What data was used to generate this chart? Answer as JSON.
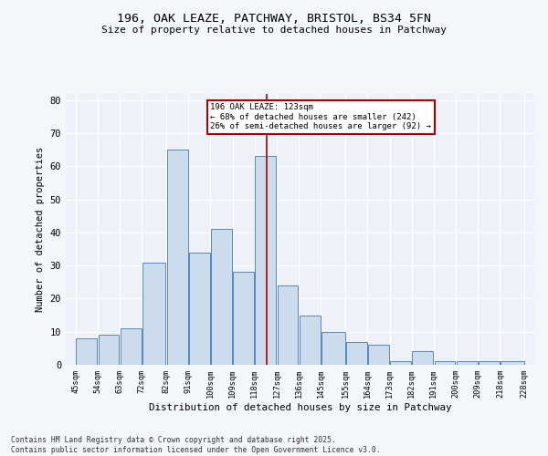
{
  "title1": "196, OAK LEAZE, PATCHWAY, BRISTOL, BS34 5FN",
  "title2": "Size of property relative to detached houses in Patchway",
  "xlabel": "Distribution of detached houses by size in Patchway",
  "ylabel": "Number of detached properties",
  "footer": "Contains HM Land Registry data © Crown copyright and database right 2025.\nContains public sector information licensed under the Open Government Licence v3.0.",
  "annotation_title": "196 OAK LEAZE: 123sqm",
  "annotation_line1": "← 68% of detached houses are smaller (242)",
  "annotation_line2": "26% of semi-detached houses are larger (92) →",
  "property_line_x": 123,
  "bar_color": "#ccdcec",
  "bar_edge_color": "#5588bb",
  "vline_color": "#aa0000",
  "annotation_box_edge_color": "#aa0000",
  "background_color": "#eef2f8",
  "grid_color": "#ffffff",
  "bins_left": [
    45,
    54,
    63,
    72,
    82,
    91,
    100,
    109,
    118,
    127,
    136,
    145,
    155,
    164,
    173,
    182,
    191,
    200,
    209,
    218
  ],
  "bins_right": [
    54,
    63,
    72,
    82,
    91,
    100,
    109,
    118,
    127,
    136,
    145,
    155,
    164,
    173,
    182,
    191,
    200,
    209,
    218,
    228
  ],
  "counts": [
    8,
    9,
    11,
    31,
    65,
    34,
    41,
    28,
    63,
    24,
    15,
    10,
    7,
    6,
    1,
    4,
    1,
    1,
    1,
    1
  ],
  "tick_labels": [
    "45sqm",
    "54sqm",
    "63sqm",
    "72sqm",
    "82sqm",
    "91sqm",
    "100sqm",
    "109sqm",
    "118sqm",
    "127sqm",
    "136sqm",
    "145sqm",
    "155sqm",
    "164sqm",
    "173sqm",
    "182sqm",
    "191sqm",
    "200sqm",
    "209sqm",
    "218sqm",
    "228sqm"
  ],
  "ylim": [
    0,
    82
  ],
  "xlim_left": 41,
  "xlim_right": 232,
  "yticks": [
    0,
    10,
    20,
    30,
    40,
    50,
    60,
    70,
    80
  ]
}
